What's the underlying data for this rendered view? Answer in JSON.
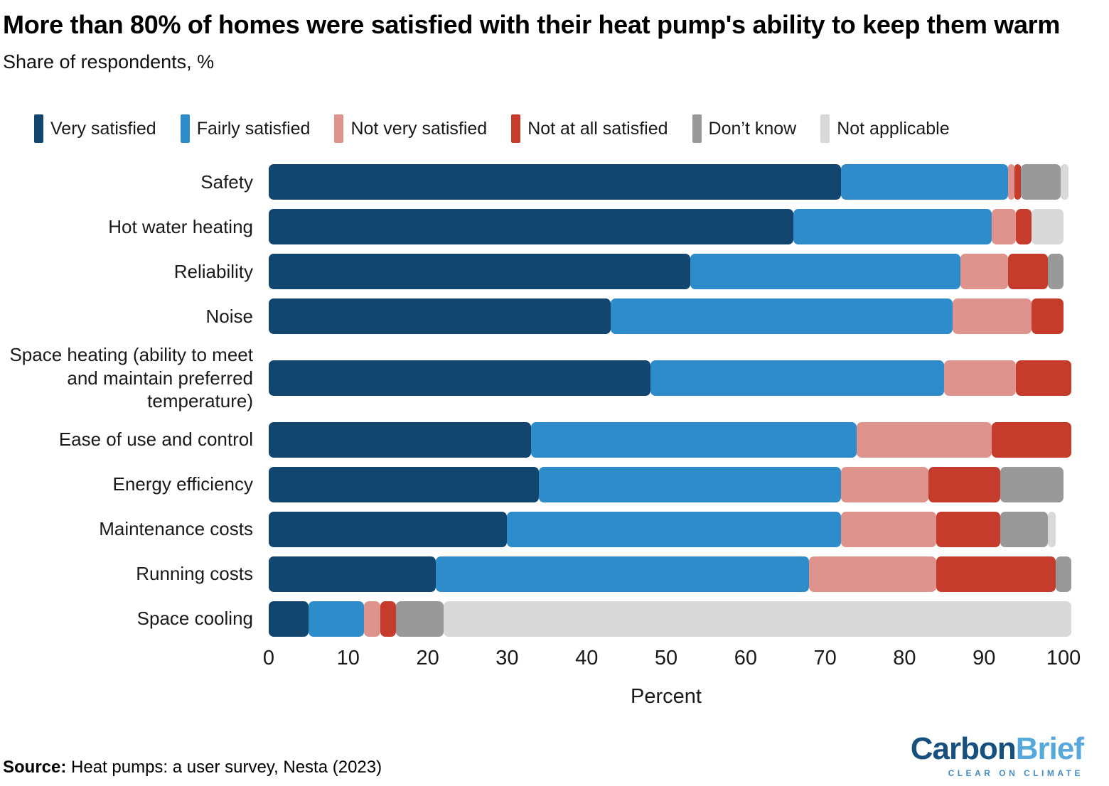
{
  "title": "More than 80% of homes were satisfied with their heat pump's ability to keep them warm",
  "subtitle": "Share of respondents, %",
  "chart_data": {
    "type": "bar",
    "orientation": "horizontal_stacked",
    "categories": [
      "Safety",
      "Hot water heating",
      "Reliability",
      "Noise",
      "Space heating (ability to meet and maintain preferred temperature)",
      "Ease of use and control",
      "Energy efficiency",
      "Maintenance costs",
      "Running costs",
      "Space cooling"
    ],
    "series": [
      {
        "name": "Very satisfied",
        "color": "#13466E",
        "values": [
          72,
          66,
          53,
          43,
          48,
          33,
          34,
          30,
          21,
          5
        ]
      },
      {
        "name": "Fairly satisfied",
        "color": "#2F8CCB",
        "values": [
          21,
          25,
          34,
          43,
          37,
          41,
          38,
          42,
          47,
          7
        ]
      },
      {
        "name": "Not very satisfied",
        "color": "#DE948C",
        "values": [
          0.5,
          3,
          6,
          10,
          9,
          17,
          11,
          12,
          16,
          2
        ]
      },
      {
        "name": "Not at all satisfied",
        "color": "#C53C2C",
        "values": [
          0.5,
          2,
          5,
          4,
          7,
          10,
          9,
          8,
          15,
          2
        ]
      },
      {
        "name": "Don’t know",
        "color": "#999999",
        "values": [
          5,
          0,
          2,
          0,
          0,
          0,
          8,
          6,
          2,
          6
        ]
      },
      {
        "name": "Not applicable",
        "color": "#D9D9D9",
        "values": [
          1,
          4,
          0,
          0,
          0,
          0,
          0,
          1,
          0,
          79
        ]
      }
    ],
    "xlabel": "Percent",
    "x_ticks": [
      0,
      10,
      20,
      30,
      40,
      50,
      60,
      70,
      80,
      90,
      100
    ],
    "xlim": [
      0,
      102.5
    ],
    "grid": false,
    "legend_position": "top"
  },
  "source": {
    "label": "Source:",
    "text": "Heat pumps: a user survey, Nesta (2023)"
  },
  "logo": {
    "carbon": "Carbon",
    "brief": "Brief",
    "tagline": "CLEAR ON CLIMATE"
  }
}
